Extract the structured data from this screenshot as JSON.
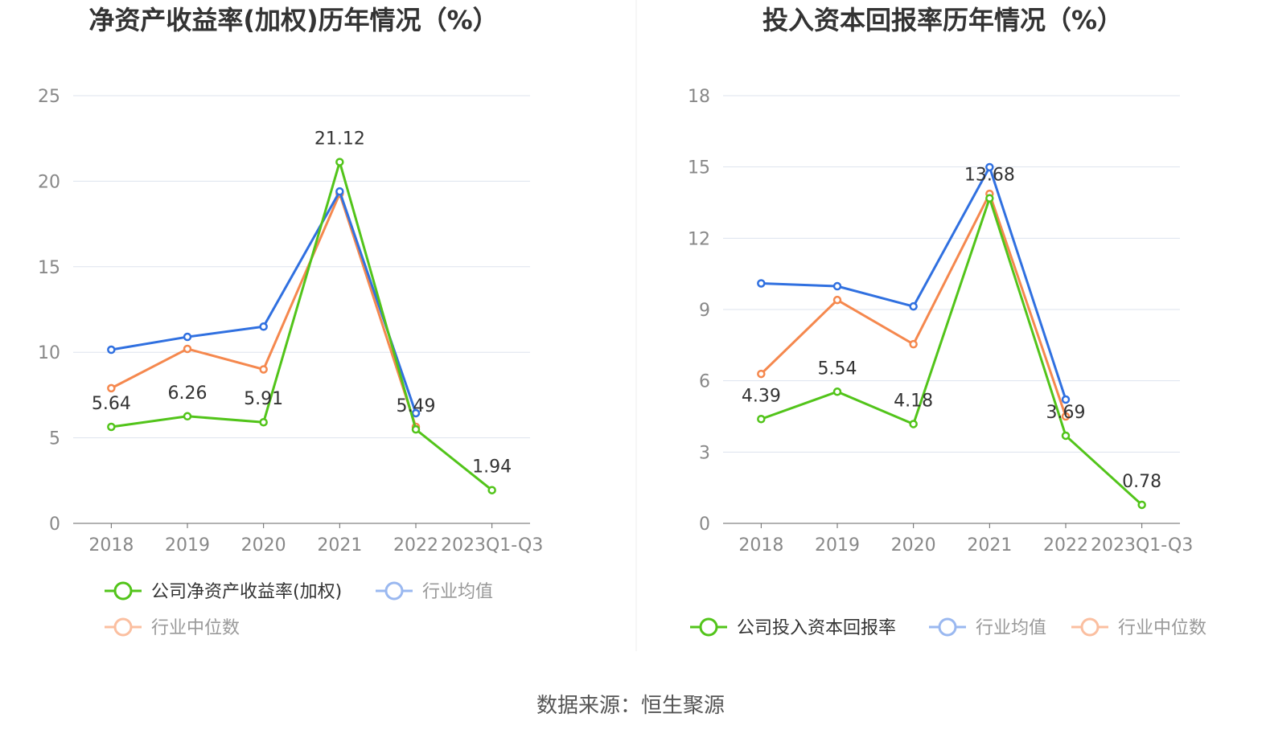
{
  "source": "数据来源：恒生聚源",
  "chart_data": [
    {
      "type": "line",
      "title": "净资产收益率(加权)历年情况（%）",
      "categories": [
        "2018",
        "2019",
        "2020",
        "2021",
        "2022",
        "2023Q1-Q3"
      ],
      "ylim": [
        0,
        25
      ],
      "yticks": [
        0,
        5,
        10,
        15,
        20,
        25
      ],
      "series": [
        {
          "name": "公司净资产收益率(加权)",
          "color": "#52c41a",
          "values": [
            5.64,
            6.26,
            5.91,
            21.12,
            5.49,
            1.94
          ],
          "labels": [
            "5.64",
            "6.26",
            "5.91",
            "21.12",
            "5.49",
            "1.94"
          ]
        },
        {
          "name": "行业均值",
          "color": "#3070e0",
          "values": [
            10.15,
            10.9,
            11.5,
            19.4,
            6.44,
            null
          ]
        },
        {
          "name": "行业中位数",
          "color": "#f5884e",
          "values": [
            7.9,
            10.2,
            9.0,
            19.27,
            5.64,
            null
          ]
        }
      ]
    },
    {
      "type": "line",
      "title": "投入资本回报率历年情况（%）",
      "categories": [
        "2018",
        "2019",
        "2020",
        "2021",
        "2022",
        "2023Q1-Q3"
      ],
      "ylim": [
        0,
        18
      ],
      "yticks": [
        0,
        3,
        6,
        9,
        12,
        15,
        18
      ],
      "series": [
        {
          "name": "公司投入资本回报率",
          "color": "#52c41a",
          "values": [
            4.39,
            5.54,
            4.18,
            13.68,
            3.69,
            0.78
          ],
          "labels": [
            "4.39",
            "5.54",
            "4.18",
            "13.68",
            "3.69",
            "0.78"
          ]
        },
        {
          "name": "行业均值",
          "color": "#3070e0",
          "values": [
            10.1,
            9.98,
            9.13,
            14.99,
            5.21,
            null
          ]
        },
        {
          "name": "行业中位数",
          "color": "#f5884e",
          "values": [
            6.29,
            9.4,
            7.54,
            13.87,
            4.5,
            null
          ]
        }
      ]
    }
  ]
}
